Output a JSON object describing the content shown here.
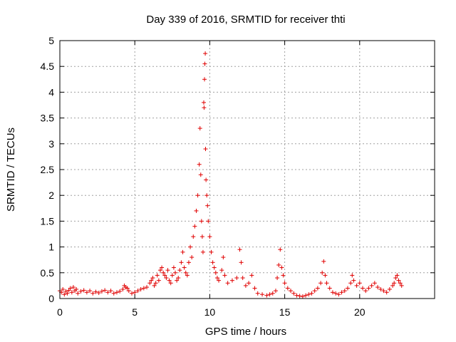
{
  "chart_data": {
    "type": "scatter",
    "title": "Day 339 of 2016, SRMTID for receiver thti",
    "xlabel": "GPS time / hours",
    "ylabel": "SRMTID / TECUs",
    "xlim": [
      0,
      25
    ],
    "ylim": [
      0,
      5
    ],
    "x_ticks": [
      0,
      5,
      10,
      15,
      20
    ],
    "x_tick_labels": [
      "0",
      "5",
      "10",
      "15",
      "20"
    ],
    "y_ticks": [
      0,
      0.5,
      1,
      1.5,
      2,
      2.5,
      3,
      3.5,
      4,
      4.5,
      5
    ],
    "y_tick_labels": [
      "0",
      "0.5",
      "1",
      "1.5",
      "2",
      "2.5",
      "3",
      "3.5",
      "4",
      "4.5",
      "5"
    ],
    "grid": true,
    "marker": "plus",
    "marker_color": "#e00000",
    "series": [
      {
        "name": "thti",
        "points": [
          [
            0.0,
            0.15
          ],
          [
            0.1,
            0.12
          ],
          [
            0.2,
            0.18
          ],
          [
            0.3,
            0.08
          ],
          [
            0.4,
            0.14
          ],
          [
            0.5,
            0.1
          ],
          [
            0.6,
            0.16
          ],
          [
            0.7,
            0.2
          ],
          [
            0.8,
            0.12
          ],
          [
            0.9,
            0.22
          ],
          [
            1.0,
            0.15
          ],
          [
            1.1,
            0.18
          ],
          [
            1.2,
            0.1
          ],
          [
            1.4,
            0.14
          ],
          [
            1.6,
            0.16
          ],
          [
            1.8,
            0.12
          ],
          [
            2.0,
            0.15
          ],
          [
            2.2,
            0.1
          ],
          [
            2.4,
            0.13
          ],
          [
            2.6,
            0.11
          ],
          [
            2.8,
            0.14
          ],
          [
            3.0,
            0.16
          ],
          [
            3.2,
            0.12
          ],
          [
            3.4,
            0.15
          ],
          [
            3.6,
            0.1
          ],
          [
            3.8,
            0.12
          ],
          [
            4.0,
            0.14
          ],
          [
            4.2,
            0.18
          ],
          [
            4.3,
            0.25
          ],
          [
            4.4,
            0.22
          ],
          [
            4.5,
            0.2
          ],
          [
            4.6,
            0.15
          ],
          [
            4.8,
            0.1
          ],
          [
            5.0,
            0.12
          ],
          [
            5.2,
            0.15
          ],
          [
            5.4,
            0.18
          ],
          [
            5.6,
            0.2
          ],
          [
            5.8,
            0.22
          ],
          [
            6.0,
            0.3
          ],
          [
            6.1,
            0.35
          ],
          [
            6.2,
            0.4
          ],
          [
            6.3,
            0.25
          ],
          [
            6.4,
            0.3
          ],
          [
            6.5,
            0.45
          ],
          [
            6.6,
            0.35
          ],
          [
            6.7,
            0.55
          ],
          [
            6.8,
            0.6
          ],
          [
            6.9,
            0.5
          ],
          [
            7.0,
            0.45
          ],
          [
            7.1,
            0.4
          ],
          [
            7.2,
            0.55
          ],
          [
            7.3,
            0.35
          ],
          [
            7.4,
            0.3
          ],
          [
            7.5,
            0.45
          ],
          [
            7.6,
            0.6
          ],
          [
            7.7,
            0.5
          ],
          [
            7.8,
            0.35
          ],
          [
            7.9,
            0.4
          ],
          [
            8.0,
            0.55
          ],
          [
            8.1,
            0.7
          ],
          [
            8.2,
            0.9
          ],
          [
            8.3,
            0.6
          ],
          [
            8.4,
            0.5
          ],
          [
            8.5,
            0.45
          ],
          [
            8.6,
            0.7
          ],
          [
            8.7,
            1.0
          ],
          [
            8.8,
            0.8
          ],
          [
            8.9,
            1.2
          ],
          [
            9.0,
            1.4
          ],
          [
            9.1,
            1.7
          ],
          [
            9.2,
            2.0
          ],
          [
            9.3,
            2.6
          ],
          [
            9.35,
            3.3
          ],
          [
            9.4,
            2.4
          ],
          [
            9.45,
            1.5
          ],
          [
            9.5,
            1.2
          ],
          [
            9.55,
            0.9
          ],
          [
            9.6,
            3.8
          ],
          [
            9.62,
            3.7
          ],
          [
            9.65,
            4.25
          ],
          [
            9.67,
            4.55
          ],
          [
            9.7,
            4.75
          ],
          [
            9.72,
            2.9
          ],
          [
            9.75,
            2.3
          ],
          [
            9.8,
            2.0
          ],
          [
            9.85,
            1.8
          ],
          [
            9.9,
            1.5
          ],
          [
            10.0,
            1.2
          ],
          [
            10.1,
            0.9
          ],
          [
            10.2,
            0.7
          ],
          [
            10.3,
            0.6
          ],
          [
            10.4,
            0.5
          ],
          [
            10.5,
            0.4
          ],
          [
            10.6,
            0.35
          ],
          [
            10.8,
            0.55
          ],
          [
            10.9,
            0.8
          ],
          [
            11.0,
            0.45
          ],
          [
            11.2,
            0.3
          ],
          [
            11.5,
            0.35
          ],
          [
            11.8,
            0.4
          ],
          [
            12.0,
            0.95
          ],
          [
            12.1,
            0.7
          ],
          [
            12.2,
            0.4
          ],
          [
            12.4,
            0.25
          ],
          [
            12.6,
            0.3
          ],
          [
            12.8,
            0.45
          ],
          [
            13.0,
            0.2
          ],
          [
            13.2,
            0.1
          ],
          [
            13.5,
            0.08
          ],
          [
            13.8,
            0.06
          ],
          [
            14.0,
            0.08
          ],
          [
            14.2,
            0.1
          ],
          [
            14.4,
            0.15
          ],
          [
            14.5,
            0.4
          ],
          [
            14.6,
            0.65
          ],
          [
            14.7,
            0.95
          ],
          [
            14.8,
            0.6
          ],
          [
            14.9,
            0.45
          ],
          [
            15.0,
            0.3
          ],
          [
            15.2,
            0.2
          ],
          [
            15.4,
            0.15
          ],
          [
            15.6,
            0.1
          ],
          [
            15.8,
            0.06
          ],
          [
            16.0,
            0.05
          ],
          [
            16.2,
            0.04
          ],
          [
            16.4,
            0.06
          ],
          [
            16.6,
            0.08
          ],
          [
            16.8,
            0.1
          ],
          [
            17.0,
            0.15
          ],
          [
            17.2,
            0.2
          ],
          [
            17.4,
            0.3
          ],
          [
            17.5,
            0.5
          ],
          [
            17.6,
            0.72
          ],
          [
            17.7,
            0.45
          ],
          [
            17.8,
            0.3
          ],
          [
            18.0,
            0.2
          ],
          [
            18.2,
            0.12
          ],
          [
            18.4,
            0.1
          ],
          [
            18.6,
            0.08
          ],
          [
            18.8,
            0.12
          ],
          [
            19.0,
            0.15
          ],
          [
            19.2,
            0.2
          ],
          [
            19.4,
            0.3
          ],
          [
            19.5,
            0.45
          ],
          [
            19.6,
            0.35
          ],
          [
            19.8,
            0.25
          ],
          [
            20.0,
            0.3
          ],
          [
            20.2,
            0.2
          ],
          [
            20.4,
            0.15
          ],
          [
            20.6,
            0.2
          ],
          [
            20.8,
            0.25
          ],
          [
            21.0,
            0.3
          ],
          [
            21.2,
            0.22
          ],
          [
            21.4,
            0.18
          ],
          [
            21.6,
            0.15
          ],
          [
            21.8,
            0.12
          ],
          [
            22.0,
            0.18
          ],
          [
            22.2,
            0.25
          ],
          [
            22.3,
            0.3
          ],
          [
            22.4,
            0.4
          ],
          [
            22.5,
            0.45
          ],
          [
            22.6,
            0.35
          ],
          [
            22.7,
            0.3
          ],
          [
            22.8,
            0.25
          ]
        ]
      }
    ]
  }
}
